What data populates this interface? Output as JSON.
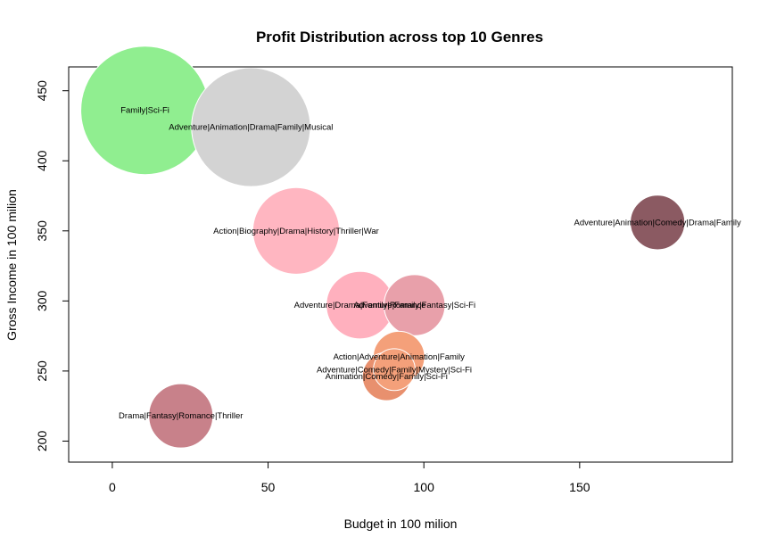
{
  "chart_data": {
    "type": "scatter",
    "title": "Profit Distribution across top 10 Genres",
    "xlabel": "Budget in 100 milion",
    "ylabel": "Gross Income in 100 milion",
    "xlim": [
      -14,
      199
    ],
    "ylim": [
      185,
      467
    ],
    "x_ticks": [
      0,
      50,
      100,
      150
    ],
    "y_ticks": [
      200,
      250,
      300,
      350,
      400,
      450
    ],
    "grid": false,
    "legend": "none",
    "points": [
      {
        "label": "Family|Sci-Fi",
        "x": 10.5,
        "y": 436,
        "size": 2.0,
        "color": "#90EE90"
      },
      {
        "label": "Adventure|Animation|Drama|Family|Musical",
        "x": 44.5,
        "y": 424,
        "size": 1.85,
        "color": "#D3D3D3"
      },
      {
        "label": "Action|Biography|Drama|History|Thriller|War",
        "x": 59,
        "y": 350,
        "size": 1.35,
        "color": "#FFB6C1"
      },
      {
        "label": "Adventure|Animation|Comedy|Drama|Family",
        "x": 175,
        "y": 356,
        "size": 0.85,
        "color": "#8B5A62"
      },
      {
        "label": "Adventure|Drama|Family|Romance",
        "x": 79.5,
        "y": 297,
        "size": 1.05,
        "color": "#FFB0BE"
      },
      {
        "label": "Adventure|Family|Fantasy|Sci-Fi",
        "x": 97,
        "y": 297,
        "size": 0.95,
        "color": "#E8A0AA"
      },
      {
        "label": "Action|Adventure|Animation|Family",
        "x": 92,
        "y": 260,
        "size": 0.8,
        "color": "#F4A07A"
      },
      {
        "label": "Adventure|Comedy|Family|Mystery|Sci-Fi",
        "x": 90.5,
        "y": 251,
        "size": 0.65,
        "color": "#F4A07A"
      },
      {
        "label": "Animation|Comedy|Family|Sci-Fi",
        "x": 88,
        "y": 246,
        "size": 0.75,
        "color": "#E8906E"
      },
      {
        "label": "Drama|Fantasy|Romance|Thriller",
        "x": 22,
        "y": 218,
        "size": 1.0,
        "color": "#C8818A"
      }
    ]
  }
}
